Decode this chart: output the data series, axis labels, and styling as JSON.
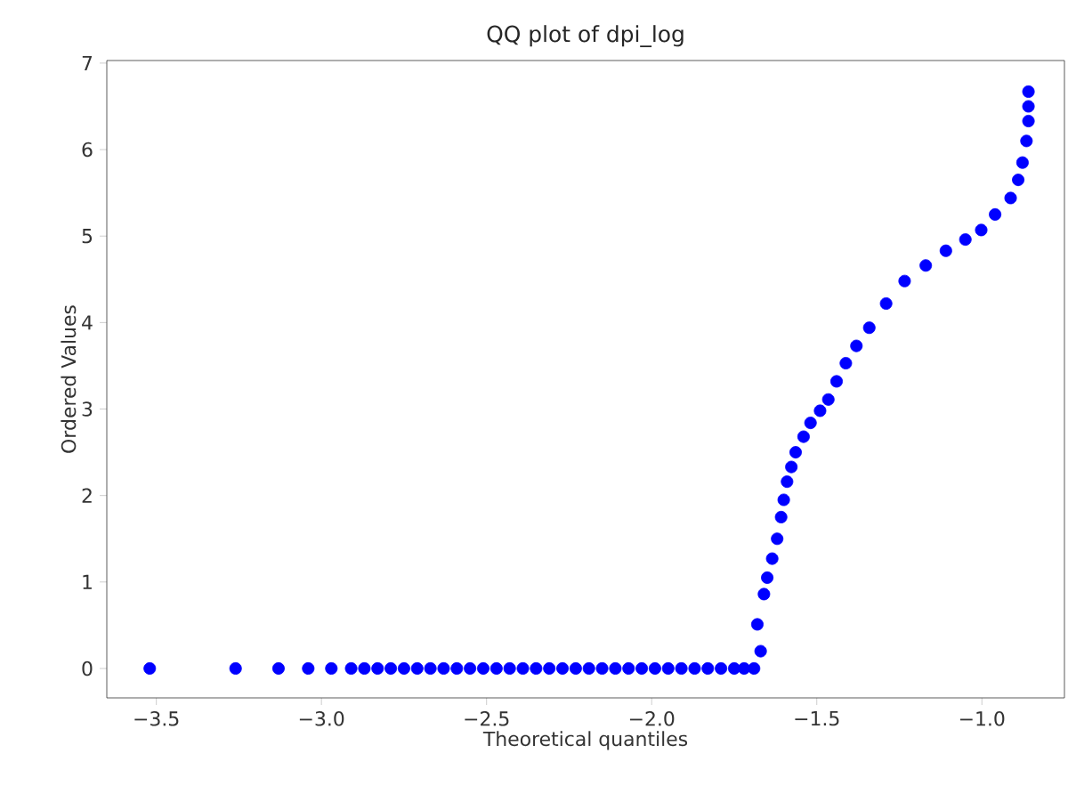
{
  "chart_data": {
    "type": "scatter",
    "title": "QQ plot of dpi_log",
    "xlabel": "Theoretical quantiles",
    "ylabel": "Ordered Values",
    "color": "#0000ff",
    "marker": "circle",
    "x": [
      -3.52,
      -3.26,
      -3.13,
      -3.04,
      -2.97,
      -2.91,
      -2.87,
      -2.83,
      -2.79,
      -2.75,
      -2.71,
      -2.67,
      -2.63,
      -2.59,
      -2.55,
      -2.51,
      -2.47,
      -2.43,
      -2.39,
      -2.35,
      -2.31,
      -2.27,
      -2.23,
      -2.19,
      -2.15,
      -2.11,
      -2.07,
      -2.03,
      -1.99,
      -1.95,
      -1.91,
      -1.87,
      -1.83,
      -1.79,
      -1.75,
      -1.72,
      -1.69,
      -1.67,
      -1.68,
      -1.66,
      -1.65,
      -1.635,
      -1.62,
      -1.608,
      -1.6,
      -1.59,
      -1.577,
      -1.564,
      -1.54,
      -1.519,
      -1.49,
      -1.465,
      -1.44,
      -1.412,
      -1.38,
      -1.341,
      -1.29,
      -1.234,
      -1.17,
      -1.109,
      -1.05,
      -1.002,
      -0.96,
      -0.913,
      -0.89,
      -0.877,
      -0.865,
      -0.859,
      -0.859,
      -0.859
    ],
    "values": [
      0,
      0,
      0,
      0,
      0,
      0,
      0,
      0,
      0,
      0,
      0,
      0,
      0,
      0,
      0,
      0,
      0,
      0,
      0,
      0,
      0,
      0,
      0,
      0,
      0,
      0,
      0,
      0,
      0,
      0,
      0,
      0,
      0,
      0,
      0,
      0,
      0,
      0.2,
      0.51,
      0.86,
      1.05,
      1.27,
      1.5,
      1.75,
      1.95,
      2.16,
      2.33,
      2.5,
      2.68,
      2.84,
      2.98,
      3.11,
      3.32,
      3.53,
      3.73,
      3.94,
      4.22,
      4.48,
      4.66,
      4.83,
      4.96,
      5.07,
      5.25,
      5.44,
      5.65,
      5.85,
      6.1,
      6.33,
      6.5,
      6.67
    ],
    "xlim": [
      -3.65,
      -0.75
    ],
    "ylim": [
      -0.34,
      7.03
    ],
    "xticks": [
      {
        "value": -3.5,
        "label": "−3.5"
      },
      {
        "value": -3.0,
        "label": "−3.0"
      },
      {
        "value": -2.5,
        "label": "−2.5"
      },
      {
        "value": -2.0,
        "label": "−2.0"
      },
      {
        "value": -1.5,
        "label": "−1.5"
      },
      {
        "value": -1.0,
        "label": "−1.0"
      }
    ],
    "yticks": [
      0,
      1,
      2,
      3,
      4,
      5,
      6,
      7
    ]
  }
}
